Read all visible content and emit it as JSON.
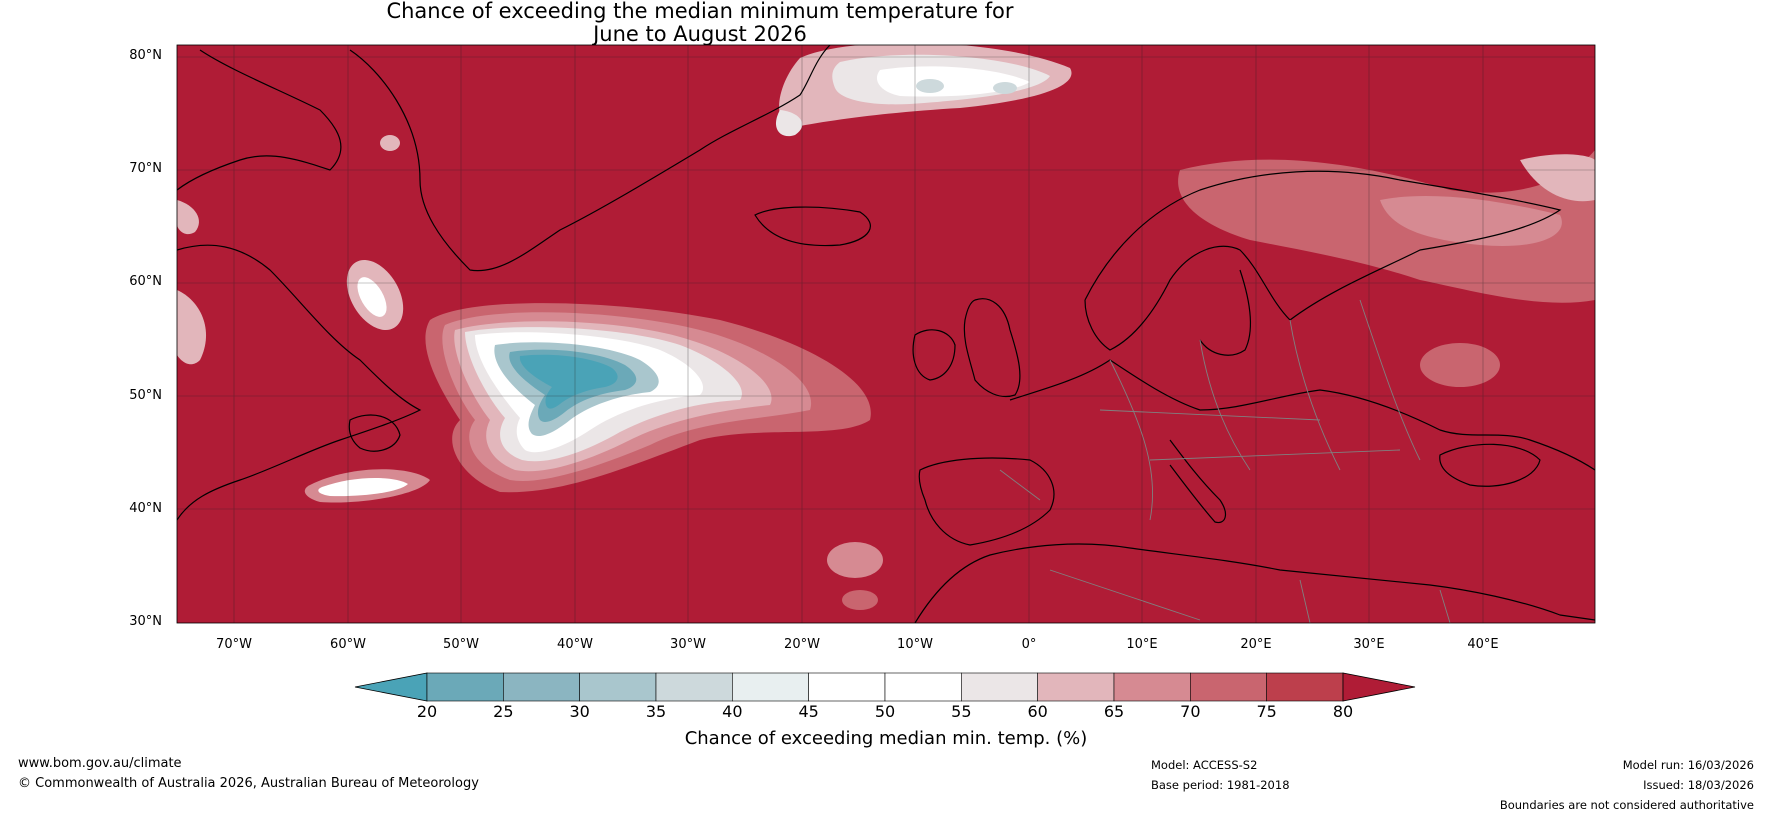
{
  "title_line1": "Chance of exceeding the median minimum temperature for",
  "title_line2": "June to August 2026",
  "lat_labels": [
    "80°N",
    "70°N",
    "60°N",
    "50°N",
    "40°N",
    "30°N"
  ],
  "lon_labels": [
    "70°W",
    "60°W",
    "50°W",
    "40°W",
    "30°W",
    "20°W",
    "10°W",
    "0°",
    "10°E",
    "20°E",
    "30°E",
    "40°E"
  ],
  "legend": {
    "title": "Chance of exceeding median min. temp. (%)",
    "ticks": [
      "20",
      "25",
      "30",
      "35",
      "40",
      "45",
      "50",
      "55",
      "60",
      "65",
      "70",
      "75",
      "80"
    ],
    "colors": [
      "#4aa3b7",
      "#6ba9b8",
      "#8bb5c1",
      "#a9c6cd",
      "#cdd9dc",
      "#e8eff0",
      "#ffffff",
      "#ffffff",
      "#ebe6e7",
      "#e2b6bb",
      "#d68a92",
      "#c9656f",
      "#bd3f4c",
      "#b01c36"
    ]
  },
  "colors": {
    "dry_red": "#b01c36",
    "cool_teal": "#4aa3b7",
    "coast": "#000000",
    "borders": "#808080"
  },
  "footer": {
    "url": "www.bom.gov.au/climate",
    "copyright": "© Commonwealth of Australia 2026, Australian Bureau of Meteorology",
    "model": "Model: ACCESS-S2",
    "base_period": "Base period: 1981-2018",
    "model_run": "Model run: 16/03/2026",
    "issued": "Issued: 18/03/2026",
    "disclaimer": "Boundaries are not considered authoritative"
  }
}
